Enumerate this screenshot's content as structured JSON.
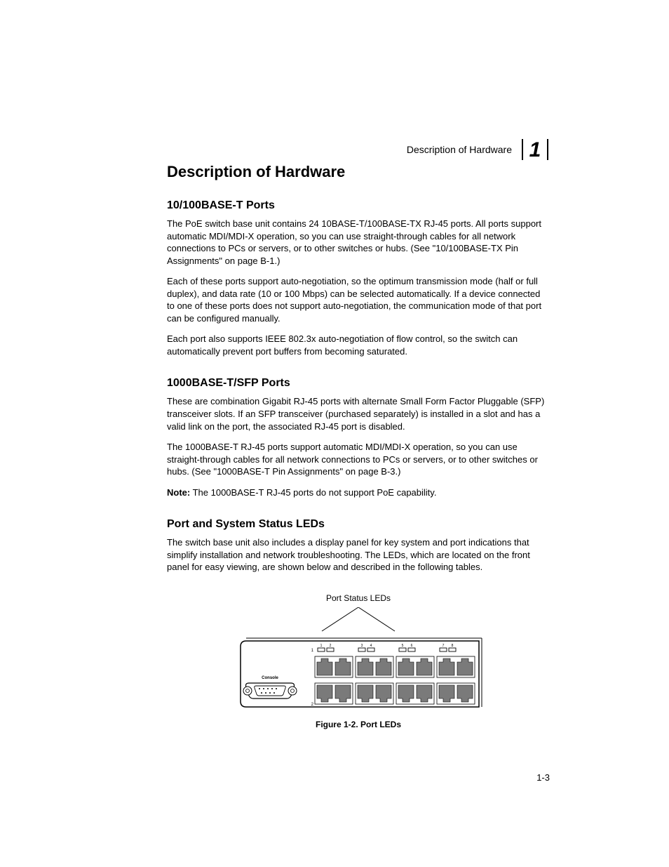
{
  "header": {
    "running_title": "Description of Hardware",
    "chapter_number": "1"
  },
  "main": {
    "title": "Description of Hardware",
    "sections": [
      {
        "heading": "10/100BASE-T Ports",
        "paragraphs": [
          "The PoE switch base unit contains 24 10BASE-T/100BASE-TX RJ-45 ports. All ports support automatic MDI/MDI-X operation, so you can use straight-through cables for all network connections to PCs or servers, or to other switches or hubs. (See \"10/100BASE-TX Pin Assignments\" on page B-1.)",
          "Each of these ports support auto-negotiation, so the optimum transmission mode (half or full duplex), and data rate (10 or 100 Mbps) can be selected automatically. If a device connected to one of these ports does not support auto-negotiation, the communication mode of that port can be configured manually.",
          "Each port also supports IEEE 802.3x auto-negotiation of flow control, so the switch can automatically prevent port buffers from becoming saturated."
        ]
      },
      {
        "heading": "1000BASE-T/SFP Ports",
        "paragraphs": [
          "These are combination Gigabit RJ-45 ports with alternate Small Form Factor Pluggable (SFP) transceiver slots. If an SFP transceiver (purchased separately) is installed in a slot and has a valid link on the port, the associated RJ-45 port is disabled.",
          "The 1000BASE-T RJ-45 ports support automatic MDI/MDI-X operation, so you can use straight-through cables for all network connections to PCs or servers, or to other switches or hubs. (See \"1000BASE-T Pin Assignments\" on page B-3.)"
        ],
        "note_label": "Note:",
        "note_text": "The 1000BASE-T RJ-45 ports do not support PoE capability."
      },
      {
        "heading": "Port and System Status LEDs",
        "paragraphs": [
          "The switch base unit also includes a display panel for key system and port indications that simplify installation and network troubleshooting. The LEDs, which are located on the front panel for easy viewing, are shown below and described in the following tables."
        ]
      }
    ]
  },
  "figure": {
    "label_above": "Port Status LEDs",
    "caption": "Figure 1-2.  Port LEDs",
    "console_label": "Console",
    "led_numbers": [
      "1",
      "2",
      "3",
      "4",
      "5",
      "6",
      "7",
      "8"
    ],
    "row_labels": {
      "left_top": "1",
      "left_bottom": "2"
    },
    "colors": {
      "stroke": "#000000",
      "port_fill": "#7a7a7a",
      "led_fill": "#ffffff",
      "bg": "#ffffff"
    }
  },
  "footer": {
    "page_number": "1-3"
  }
}
